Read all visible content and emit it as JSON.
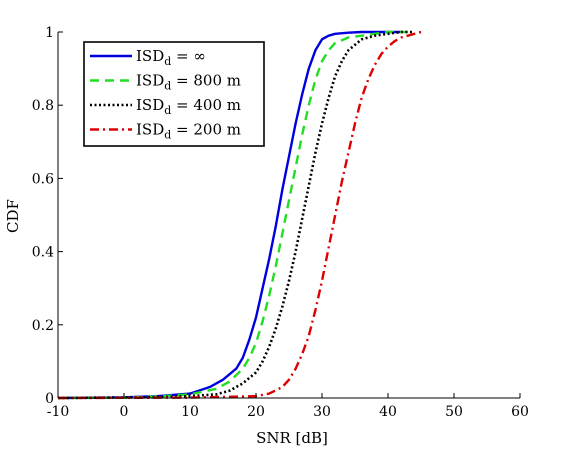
{
  "chart_data": {
    "type": "line",
    "title": "",
    "xlabel": "SNR [dB]",
    "ylabel": "CDF",
    "xlim": [
      -10,
      60
    ],
    "ylim": [
      0,
      1
    ],
    "xticks": [
      -10,
      0,
      10,
      20,
      30,
      40,
      50,
      60
    ],
    "yticks": [
      0,
      0.2,
      0.4,
      0.6,
      0.8,
      1
    ],
    "xtick_labels": [
      "-10",
      "0",
      "10",
      "20",
      "30",
      "40",
      "50",
      "60"
    ],
    "ytick_labels": [
      "0",
      "0.2",
      "0.4",
      "0.6",
      "0.8",
      "1"
    ],
    "grid": false,
    "legend_position": "top-left",
    "series": [
      {
        "name": "ISD_d = ∞",
        "name_main": "ISD",
        "name_sub": "d",
        "name_rest": " = ∞",
        "color": "#0000dd",
        "style": "solid",
        "x": [
          -10,
          0,
          5,
          10,
          13,
          15,
          17,
          18,
          19,
          20,
          21,
          22,
          23,
          24,
          25,
          26,
          27,
          28,
          29,
          30,
          31,
          32,
          34,
          36,
          38,
          42
        ],
        "y": [
          0,
          0.002,
          0.005,
          0.012,
          0.03,
          0.05,
          0.08,
          0.11,
          0.16,
          0.22,
          0.3,
          0.38,
          0.47,
          0.57,
          0.66,
          0.75,
          0.83,
          0.9,
          0.95,
          0.98,
          0.99,
          0.995,
          0.998,
          1.0,
          1.0,
          1.0
        ]
      },
      {
        "name": "ISD_d = 800 m",
        "name_main": "ISD",
        "name_sub": "d",
        "name_rest": " = 800 m",
        "color": "#22dd22",
        "style": "dashed",
        "x": [
          -10,
          0,
          5,
          10,
          14,
          16,
          18,
          19,
          20,
          21,
          22,
          23,
          24,
          25,
          26,
          27,
          28,
          29,
          30,
          31,
          32,
          34,
          36,
          38,
          40,
          43
        ],
        "y": [
          0,
          0.001,
          0.004,
          0.01,
          0.025,
          0.045,
          0.08,
          0.11,
          0.15,
          0.21,
          0.28,
          0.36,
          0.45,
          0.54,
          0.63,
          0.72,
          0.8,
          0.87,
          0.92,
          0.95,
          0.97,
          0.985,
          0.99,
          0.995,
          1.0,
          1.0
        ]
      },
      {
        "name": "ISD_d = 400 m",
        "name_main": "ISD",
        "name_sub": "d",
        "name_rest": " = 400 m",
        "color": "#000000",
        "style": "dotted",
        "x": [
          -10,
          5,
          10,
          14,
          16,
          18,
          20,
          21,
          22,
          23,
          24,
          25,
          26,
          27,
          28,
          29,
          30,
          31,
          32,
          33,
          34,
          36,
          38,
          40,
          42,
          44
        ],
        "y": [
          0,
          0.002,
          0.005,
          0.01,
          0.02,
          0.04,
          0.07,
          0.1,
          0.14,
          0.19,
          0.25,
          0.32,
          0.4,
          0.49,
          0.58,
          0.67,
          0.75,
          0.82,
          0.88,
          0.92,
          0.95,
          0.98,
          0.99,
          0.995,
          1.0,
          1.0
        ]
      },
      {
        "name": "ISD_d = 200 m",
        "name_main": "ISD",
        "name_sub": "d",
        "name_rest": " = 200 m",
        "color": "#dd0000",
        "style": "dashdot",
        "x": [
          -10,
          10,
          20,
          22,
          24,
          25,
          26,
          27,
          28,
          29,
          30,
          31,
          32,
          33,
          34,
          35,
          36,
          37,
          38,
          39,
          40,
          41,
          42,
          43,
          44,
          45,
          45.5
        ],
        "y": [
          0,
          0.001,
          0.005,
          0.012,
          0.03,
          0.05,
          0.08,
          0.12,
          0.17,
          0.24,
          0.32,
          0.41,
          0.5,
          0.59,
          0.67,
          0.75,
          0.82,
          0.87,
          0.91,
          0.94,
          0.96,
          0.975,
          0.985,
          0.99,
          0.995,
          1.0,
          1.0
        ]
      }
    ]
  }
}
